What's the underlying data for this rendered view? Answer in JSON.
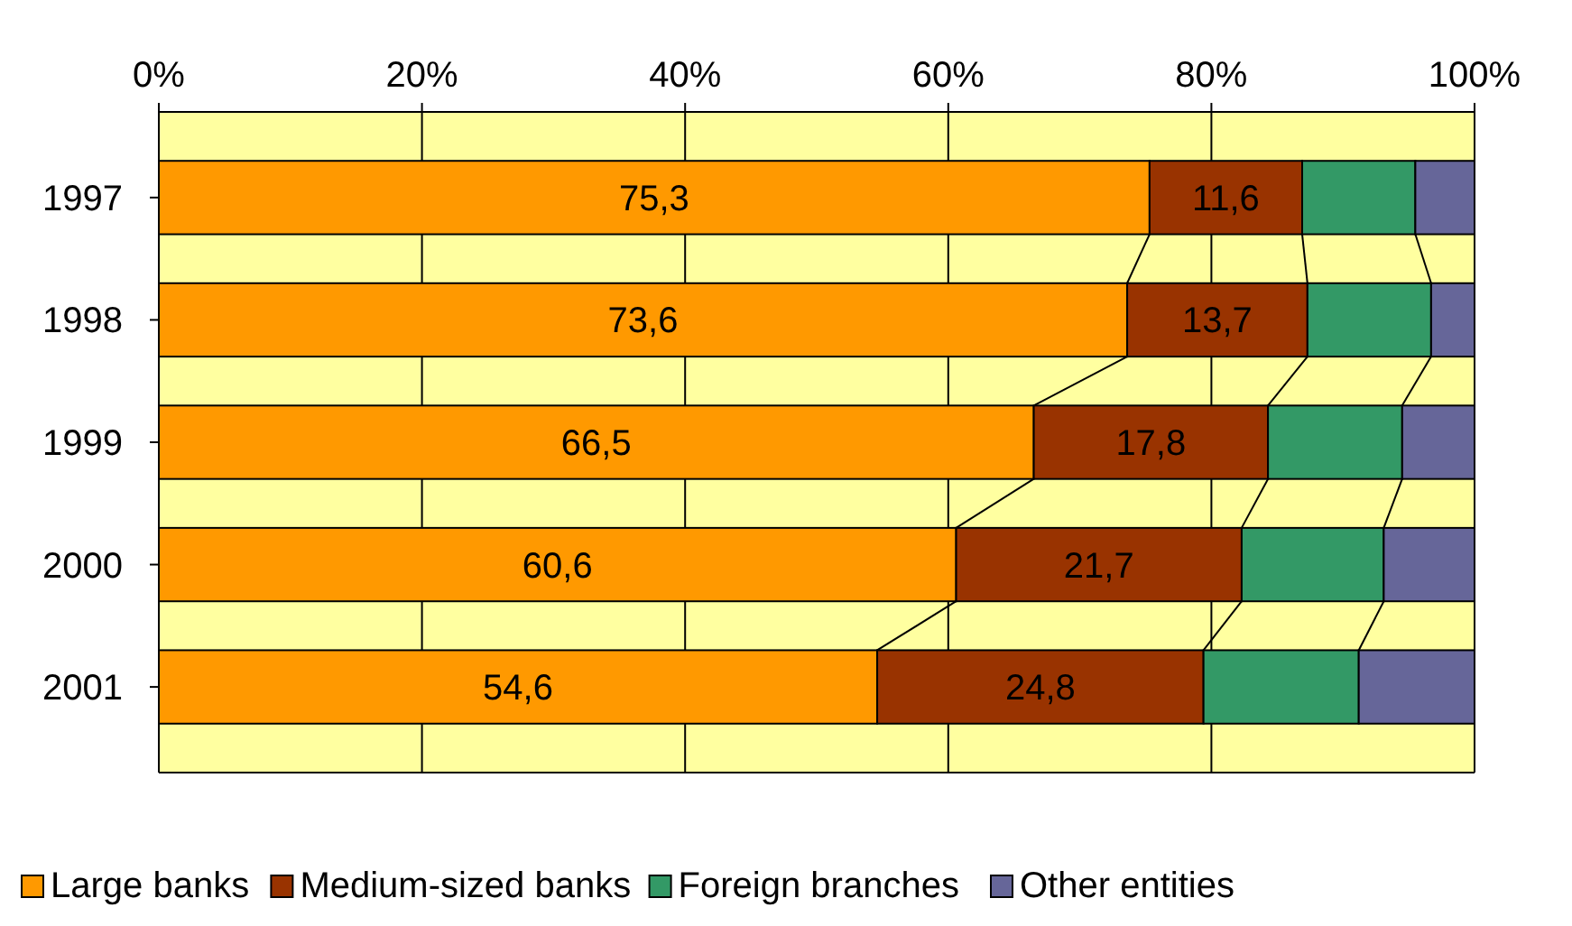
{
  "chart_data": {
    "type": "bar",
    "orientation": "horizontal",
    "stacked": true,
    "categories": [
      "1997",
      "1998",
      "1999",
      "2000",
      "2001"
    ],
    "series": [
      {
        "name": "Large banks",
        "color": "#ff9900",
        "values": [
          75.3,
          73.6,
          66.5,
          60.6,
          54.6
        ],
        "value_labels": [
          "75,3",
          "73,6",
          "66,5",
          "60,6",
          "54,6"
        ]
      },
      {
        "name": "Medium-sized banks",
        "color": "#993300",
        "values": [
          11.6,
          13.7,
          17.8,
          21.7,
          24.8
        ],
        "value_labels": [
          "11,6",
          "13,7",
          "17,8",
          "21,7",
          "24,8"
        ]
      },
      {
        "name": "Foreign branches",
        "color": "#339966",
        "values": [
          8.6,
          9.4,
          10.2,
          10.8,
          11.8
        ]
      },
      {
        "name": "Other entities",
        "color": "#666699",
        "values": [
          4.5,
          3.3,
          5.5,
          6.9,
          8.8
        ]
      }
    ],
    "xlim": [
      0,
      100
    ],
    "xticks": [
      {
        "value": 0,
        "label": "0%"
      },
      {
        "value": 20,
        "label": "20%"
      },
      {
        "value": 40,
        "label": "40%"
      },
      {
        "value": 60,
        "label": "60%"
      },
      {
        "value": 80,
        "label": "80%"
      },
      {
        "value": 100,
        "label": "100%"
      }
    ],
    "grid": "x",
    "legend": "bottom"
  }
}
